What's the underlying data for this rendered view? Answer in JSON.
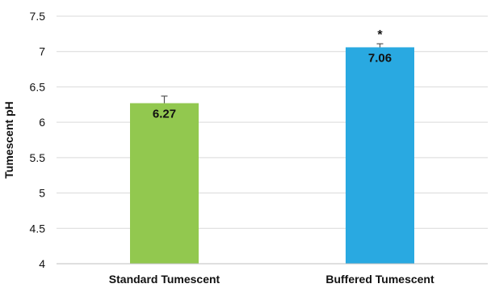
{
  "chart_data": {
    "type": "bar",
    "title": "",
    "xlabel": "",
    "ylabel": "Tumescent pH",
    "categories": [
      "Standard Tumescent",
      "Buffered Tumescent"
    ],
    "values": [
      6.27,
      7.06
    ],
    "data_labels": [
      "6.27",
      "7.06"
    ],
    "error_bars": [
      0.1,
      0.05
    ],
    "bar_colors": [
      "#92c84f",
      "#29a9e1"
    ],
    "ylim": [
      4,
      7.5
    ],
    "yticks": [
      4,
      4.5,
      5,
      5.5,
      6,
      6.5,
      7,
      7.5
    ],
    "ytick_labels": [
      "4",
      "4.5",
      "5",
      "5.5",
      "6",
      "6.5",
      "7",
      "7.5"
    ],
    "grid": true,
    "grid_axis": "y",
    "annotations": [
      {
        "category": "Buffered Tumescent",
        "text": "*"
      }
    ]
  }
}
